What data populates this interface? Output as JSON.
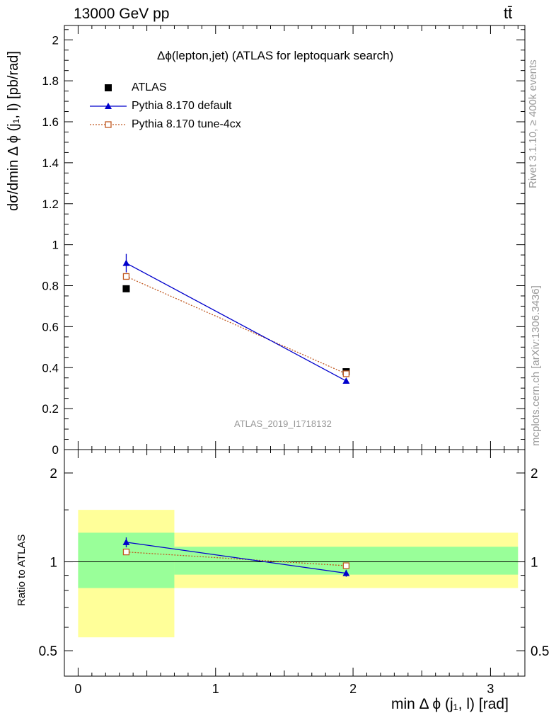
{
  "header": {
    "energy_label": "13000 GeV pp",
    "process_label": "tt̄"
  },
  "side_labels": {
    "rivet": "Rivet 3.1.10, ≥ 400k events",
    "mcplots": "mcplots.cern.ch [arXiv:1306.3436]"
  },
  "colors": {
    "atlas": "#000000",
    "pythia_default": "#0000cc",
    "pythia_tune": "#c05820",
    "band_inner": "#99ff99",
    "band_outer": "#ffff99"
  },
  "chart_data": [
    {
      "type": "scatter",
      "title": "Δϕ(lepton,jet) (ATLAS for leptoquark search)",
      "ylabel": "dσ/dmin Δ ϕ (j₁, l) [pb/rad]",
      "watermark": "ATLAS_2019_I1718132",
      "xlim": [
        -0.1,
        3.25
      ],
      "ylim": [
        0,
        2.07
      ],
      "yticks": [
        0,
        0.2,
        0.4,
        0.6,
        0.8,
        1,
        1.2,
        1.4,
        1.6,
        1.8,
        2
      ],
      "ytick_labels": [
        "0",
        "0.2",
        "0.4",
        "0.6",
        "0.8",
        "1",
        "1.2",
        "1.4",
        "1.6",
        "1.8",
        "2"
      ],
      "legend_position": "top-left",
      "series": [
        {
          "name": "ATLAS",
          "marker": "filled-square",
          "x": [
            0.35,
            1.95
          ],
          "y": [
            0.785,
            0.38
          ]
        },
        {
          "name": "Pythia 8.170 default",
          "marker": "filled-triangle",
          "line": "solid",
          "x": [
            0.35,
            1.95
          ],
          "y": [
            0.91,
            0.335
          ],
          "yerr": [
            0.045,
            0.01
          ]
        },
        {
          "name": "Pythia 8.170 tune-4cx",
          "marker": "open-square",
          "line": "dotted",
          "x": [
            0.35,
            1.95
          ],
          "y": [
            0.845,
            0.37
          ],
          "yerr": [
            0.01,
            0.005
          ]
        }
      ]
    },
    {
      "type": "scatter",
      "ylabel": "Ratio to ATLAS",
      "xlabel": "min Δ ϕ (j₁, l) [rad]",
      "xlim": [
        -0.1,
        3.25
      ],
      "ylim": [
        0.41,
        2.4
      ],
      "ylog": true,
      "xticks": [
        0,
        1,
        2,
        3
      ],
      "xtick_labels": [
        "0",
        "1",
        "2",
        "3"
      ],
      "yticks": [
        0.5,
        1,
        2
      ],
      "ytick_labels": [
        "0.5",
        "1",
        "2"
      ],
      "reference_line": 1,
      "bands": [
        {
          "x": [
            0,
            0.7
          ],
          "inner": [
            0.815,
            1.255
          ],
          "outer": [
            0.555,
            1.5
          ]
        },
        {
          "x": [
            0.7,
            3.2
          ],
          "inner": [
            0.905,
            1.125
          ],
          "outer": [
            0.815,
            1.255
          ]
        }
      ],
      "series": [
        {
          "name": "Pythia 8.170 default",
          "x": [
            0.35,
            1.95
          ],
          "y": [
            1.165,
            0.915
          ],
          "yerr": [
            0.045,
            0.025
          ]
        },
        {
          "name": "Pythia 8.170 tune-4cx",
          "x": [
            0.35,
            1.95
          ],
          "y": [
            1.08,
            0.97
          ],
          "yerr": [
            0.015,
            0.01
          ]
        }
      ]
    }
  ]
}
